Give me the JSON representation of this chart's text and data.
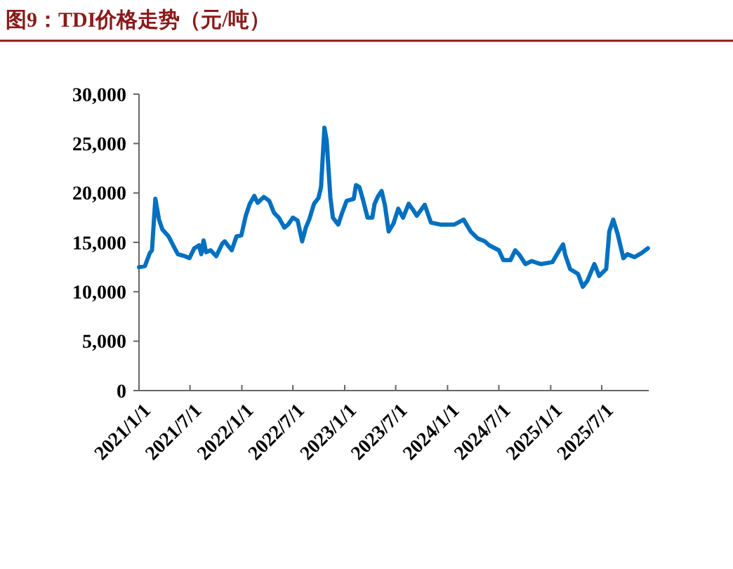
{
  "chart_data": {
    "type": "line",
    "title": "图9：TDI价格走势（元/吨）",
    "xlim": [
      "2021-01-01",
      "2025-12-15"
    ],
    "xticks": [
      {
        "value": "2021-01-01",
        "label": "2021/1/1"
      },
      {
        "value": "2021-07-01",
        "label": "2021/7/1"
      },
      {
        "value": "2022-01-01",
        "label": "2022/1/1"
      },
      {
        "value": "2022-07-01",
        "label": "2022/7/1"
      },
      {
        "value": "2023-01-01",
        "label": "2023/1/1"
      },
      {
        "value": "2023-07-01",
        "label": "2023/7/1"
      },
      {
        "value": "2024-01-01",
        "label": "2024/1/1"
      },
      {
        "value": "2024-07-01",
        "label": "2024/7/1"
      },
      {
        "value": "2025-01-01",
        "label": "2025/1/1"
      },
      {
        "value": "2025-07-01",
        "label": "2025/7/1"
      }
    ],
    "ylim": [
      0,
      30000
    ],
    "yticks": [
      {
        "value": 0,
        "label": "0"
      },
      {
        "value": 5000,
        "label": "5,000"
      },
      {
        "value": 10000,
        "label": "10,000"
      },
      {
        "value": 15000,
        "label": "15,000"
      },
      {
        "value": 20000,
        "label": "20,000"
      },
      {
        "value": 25000,
        "label": "25,000"
      },
      {
        "value": 30000,
        "label": "30,000"
      }
    ],
    "grid": false,
    "marker": "none",
    "line_style": "solid",
    "series": [
      {
        "color": "#0070c0",
        "x": [
          "2021-01-01",
          "2021-01-22",
          "2021-02-08",
          "2021-02-16",
          "2021-02-28",
          "2021-03-13",
          "2021-03-25",
          "2021-04-16",
          "2021-05-02",
          "2021-05-19",
          "2021-06-13",
          "2021-06-29",
          "2021-07-16",
          "2021-08-02",
          "2021-08-10",
          "2021-08-18",
          "2021-08-27",
          "2021-09-12",
          "2021-10-02",
          "2021-10-24",
          "2021-11-01",
          "2021-11-26",
          "2021-12-13",
          "2021-12-30",
          "2022-01-15",
          "2022-01-29",
          "2022-02-14",
          "2022-02-26",
          "2022-03-20",
          "2022-04-08",
          "2022-04-25",
          "2022-05-12",
          "2022-06-01",
          "2022-06-14",
          "2022-07-01",
          "2022-07-18",
          "2022-08-03",
          "2022-08-16",
          "2022-08-28",
          "2022-09-14",
          "2022-09-30",
          "2022-10-09",
          "2022-10-21",
          "2022-10-29",
          "2022-11-11",
          "2022-11-20",
          "2022-12-09",
          "2022-12-23",
          "2023-01-08",
          "2023-02-02",
          "2023-02-10",
          "2023-02-22",
          "2023-03-06",
          "2023-03-23",
          "2023-04-09",
          "2023-04-17",
          "2023-04-30",
          "2023-05-12",
          "2023-05-24",
          "2023-06-06",
          "2023-06-23",
          "2023-07-10",
          "2023-07-27",
          "2023-08-16",
          "2023-08-29",
          "2023-09-14",
          "2023-10-12",
          "2023-11-03",
          "2023-12-06",
          "2024-01-25",
          "2024-02-27",
          "2024-03-23",
          "2024-04-17",
          "2024-05-12",
          "2024-05-28",
          "2024-07-01",
          "2024-07-17",
          "2024-08-11",
          "2024-08-28",
          "2024-09-13",
          "2024-10-03",
          "2024-10-25",
          "2024-11-27",
          "2025-01-07",
          "2025-02-01",
          "2025-02-14",
          "2025-02-22",
          "2025-03-11",
          "2025-04-08",
          "2025-04-25",
          "2025-05-11",
          "2025-06-05",
          "2025-06-22",
          "2025-07-17",
          "2025-07-28",
          "2025-08-11",
          "2025-08-27",
          "2025-09-16",
          "2025-09-30",
          "2025-10-25",
          "2025-11-19",
          "2025-12-12"
        ],
        "values": [
          12500,
          12600,
          13900,
          14200,
          19400,
          17300,
          16300,
          15600,
          14700,
          13800,
          13600,
          13400,
          14400,
          14700,
          13800,
          15200,
          14000,
          14200,
          13600,
          14900,
          15100,
          14200,
          15600,
          15700,
          17700,
          18900,
          19700,
          19000,
          19600,
          19200,
          18000,
          17500,
          16500,
          16800,
          17500,
          17200,
          15100,
          16500,
          17300,
          18900,
          19500,
          20600,
          26600,
          25300,
          19600,
          17500,
          16800,
          18000,
          19200,
          19400,
          20800,
          20600,
          19400,
          17500,
          17500,
          18900,
          19700,
          20200,
          18700,
          16100,
          16900,
          18400,
          17500,
          18900,
          18400,
          17700,
          18800,
          17000,
          16800,
          16800,
          17300,
          16100,
          15400,
          15100,
          14700,
          14200,
          13200,
          13200,
          14200,
          13700,
          12800,
          13100,
          12800,
          13000,
          14200,
          14800,
          13700,
          12300,
          11800,
          10500,
          11100,
          12800,
          11600,
          12300,
          16100,
          17300,
          15800,
          13400,
          13800,
          13500,
          13900,
          14400
        ]
      }
    ]
  }
}
